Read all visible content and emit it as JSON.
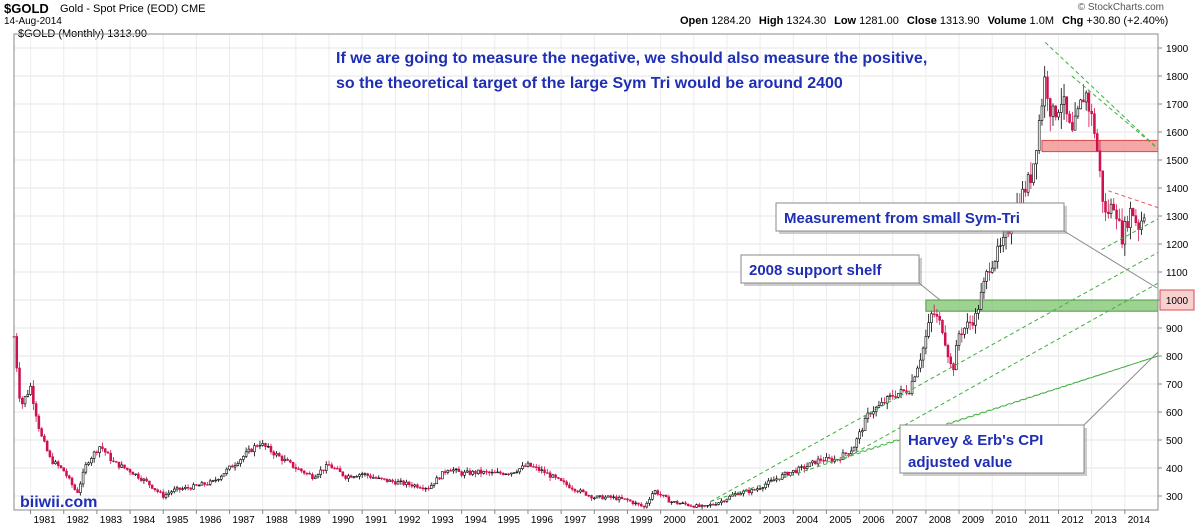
{
  "header": {
    "ticker": "$GOLD",
    "description": "Gold - Spot Price (EOD)",
    "exchange": "CME",
    "date": "14-Aug-2014",
    "brand": "© StockCharts.com",
    "ohlc": [
      {
        "label": "Open",
        "value": "1284.20"
      },
      {
        "label": "High",
        "value": "1324.30"
      },
      {
        "label": "Low",
        "value": "1281.00"
      },
      {
        "label": "Close",
        "value": "1313.90"
      },
      {
        "label": "Volume",
        "value": "1.0M"
      },
      {
        "label": "Chg",
        "value": "+30.80 (+2.40%)"
      }
    ],
    "legend": "$GOLD (Monthly) 1313.90"
  },
  "annotations": {
    "top_line1": "If we are going to measure the negative, we should also measure the positive,",
    "top_line2": "so the theoretical target of the large Sym Tri would be around 2400",
    "small_symtri": "Measurement from small Sym-Tri",
    "support_shelf": "2008 support shelf",
    "cpi_line1": "Harvey & Erb's CPI",
    "cpi_line2": "adjusted value",
    "watermark": "biiwii.com",
    "target_label": "1000"
  },
  "colors": {
    "up_candle": "#000000",
    "down_candle": "#d0104c",
    "trend_line": "#3fae3f",
    "resistance_zone": "#f08a8a",
    "support_zone": "#7cc36e",
    "annotation_text": "#1f2fb5"
  },
  "chart_data": {
    "type": "candlestick",
    "title": "$GOLD (Monthly) 1313.90",
    "x_ticks": [
      "1981",
      "1982",
      "1983",
      "1984",
      "1985",
      "1986",
      "1987",
      "1988",
      "1989",
      "1990",
      "1991",
      "1992",
      "1993",
      "1994",
      "1995",
      "1996",
      "1997",
      "1998",
      "1999",
      "2000",
      "2001",
      "2002",
      "2003",
      "2004",
      "2005",
      "2006",
      "2007",
      "2008",
      "2009",
      "2010",
      "2011",
      "2012",
      "2013",
      "2014"
    ],
    "y_ticks": [
      300,
      400,
      500,
      600,
      700,
      800,
      900,
      1000,
      1100,
      1200,
      1300,
      1400,
      1500,
      1600,
      1700,
      1800,
      1900
    ],
    "ylim": [
      250,
      1950
    ],
    "xlim": [
      1980.5,
      2015.0
    ],
    "y_axis_side": "right",
    "price_path": [
      [
        1980.5,
        870
      ],
      [
        1980.7,
        620
      ],
      [
        1981.0,
        690
      ],
      [
        1981.3,
        520
      ],
      [
        1981.6,
        430
      ],
      [
        1982.0,
        390
      ],
      [
        1982.4,
        310
      ],
      [
        1982.7,
        420
      ],
      [
        1983.1,
        480
      ],
      [
        1983.5,
        420
      ],
      [
        1984.0,
        390
      ],
      [
        1984.5,
        350
      ],
      [
        1985.0,
        300
      ],
      [
        1985.3,
        320
      ],
      [
        1985.8,
        330
      ],
      [
        1986.5,
        350
      ],
      [
        1987.0,
        400
      ],
      [
        1987.5,
        450
      ],
      [
        1987.9,
        490
      ],
      [
        1988.5,
        440
      ],
      [
        1989.0,
        400
      ],
      [
        1989.5,
        370
      ],
      [
        1990.0,
        410
      ],
      [
        1990.5,
        370
      ],
      [
        1991.0,
        380
      ],
      [
        1991.5,
        360
      ],
      [
        1992.0,
        350
      ],
      [
        1992.5,
        340
      ],
      [
        1993.0,
        330
      ],
      [
        1993.6,
        400
      ],
      [
        1994.0,
        380
      ],
      [
        1994.5,
        385
      ],
      [
        1995.0,
        380
      ],
      [
        1995.5,
        385
      ],
      [
        1996.0,
        410
      ],
      [
        1996.5,
        385
      ],
      [
        1997.0,
        350
      ],
      [
        1997.5,
        320
      ],
      [
        1998.0,
        295
      ],
      [
        1998.5,
        295
      ],
      [
        1999.0,
        285
      ],
      [
        1999.5,
        260
      ],
      [
        1999.8,
        320
      ],
      [
        2000.3,
        280
      ],
      [
        2001.0,
        265
      ],
      [
        2001.3,
        260
      ],
      [
        2001.8,
        280
      ],
      [
        2002.3,
        310
      ],
      [
        2002.8,
        320
      ],
      [
        2003.3,
        350
      ],
      [
        2003.8,
        380
      ],
      [
        2004.3,
        400
      ],
      [
        2004.8,
        430
      ],
      [
        2005.3,
        430
      ],
      [
        2005.8,
        470
      ],
      [
        2006.3,
        600
      ],
      [
        2006.6,
        620
      ],
      [
        2007.0,
        660
      ],
      [
        2007.5,
        680
      ],
      [
        2007.9,
        820
      ],
      [
        2008.2,
        960
      ],
      [
        2008.5,
        900
      ],
      [
        2008.8,
        740
      ],
      [
        2009.0,
        880
      ],
      [
        2009.5,
        940
      ],
      [
        2009.9,
        1120
      ],
      [
        2010.3,
        1190
      ],
      [
        2010.8,
        1350
      ],
      [
        2011.2,
        1450
      ],
      [
        2011.6,
        1800
      ],
      [
        2011.8,
        1650
      ],
      [
        2012.1,
        1720
      ],
      [
        2012.4,
        1580
      ],
      [
        2012.8,
        1750
      ],
      [
        2013.1,
        1600
      ],
      [
        2013.4,
        1300
      ],
      [
        2013.7,
        1350
      ],
      [
        2013.9,
        1220
      ],
      [
        2014.2,
        1330
      ],
      [
        2014.4,
        1260
      ],
      [
        2014.6,
        1313.9
      ]
    ],
    "zones": [
      {
        "name": "resistance",
        "y0": 1530,
        "y1": 1570,
        "x0": 2011.5,
        "x1": 2015.0
      },
      {
        "name": "support",
        "y0": 960,
        "y1": 1000,
        "x0": 2008.0,
        "x1": 2015.0
      }
    ],
    "trendlines": [
      {
        "from": [
          2011.6,
          1920
        ],
        "to": [
          2015.0,
          1540
        ]
      },
      {
        "from": [
          2012.4,
          1800
        ],
        "to": [
          2015.0,
          1540
        ]
      },
      {
        "from": [
          2013.5,
          1390
        ],
        "to": [
          2015.0,
          1330
        ]
      },
      {
        "from": [
          2013.3,
          1180
        ],
        "to": [
          2015.0,
          1290
        ]
      },
      {
        "from": [
          2001.5,
          280
        ],
        "to": [
          2015.0,
          1170
        ]
      },
      {
        "from": [
          2005.5,
          430
        ],
        "to": [
          2015.0,
          1060
        ]
      },
      {
        "from": [
          2001.5,
          280
        ],
        "to": [
          2015.0,
          800
        ]
      },
      {
        "from": [
          2005.0,
          420
        ],
        "to": [
          2015.0,
          800
        ]
      }
    ]
  }
}
